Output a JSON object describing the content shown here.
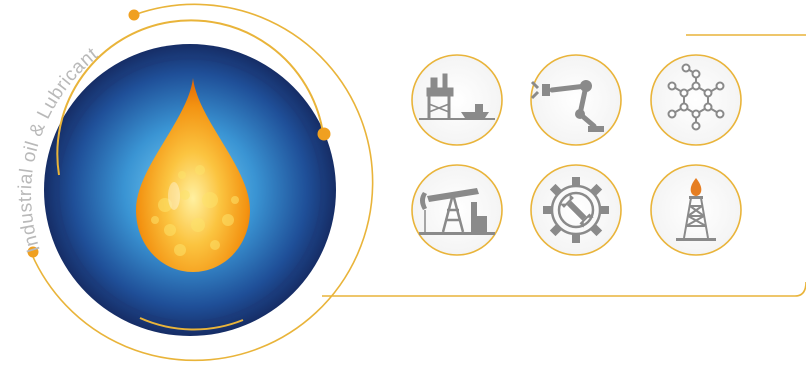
{
  "brand": {
    "arc_text": "Industrial oil & Lubricant"
  },
  "colors": {
    "gold": "#e9b43a",
    "orange_dot": "#f0a020",
    "navy": "#1d3a7a",
    "blue_mid": "#2f7fc1",
    "blue_light": "#6ec6f2",
    "icon_gray": "#8a8a8a",
    "drop_orange": "#f39c12",
    "drop_yellow": "#fde36a"
  },
  "icons": [
    {
      "name": "offshore-platform-icon"
    },
    {
      "name": "robotic-arm-icon"
    },
    {
      "name": "molecule-icon"
    },
    {
      "name": "pump-jack-icon"
    },
    {
      "name": "gear-wrench-icon"
    },
    {
      "name": "oil-derrick-flame-icon"
    }
  ]
}
